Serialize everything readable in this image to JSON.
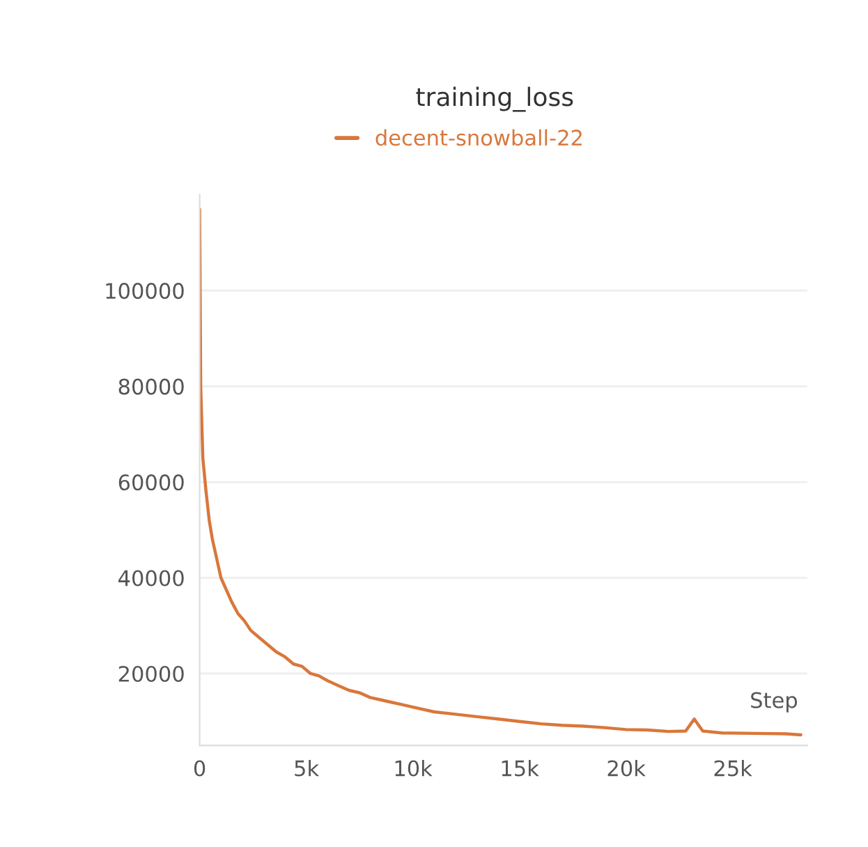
{
  "chart_data": {
    "type": "line",
    "title": "training_loss",
    "xlabel": "Step",
    "series": [
      {
        "name": "decent-snowball-22",
        "color": "#d9773a",
        "x": [
          0,
          50,
          150,
          300,
          450,
          600,
          800,
          1000,
          1200,
          1500,
          1800,
          2100,
          2400,
          2800,
          3200,
          3600,
          4000,
          4400,
          4800,
          5200,
          5600,
          6000,
          6500,
          7000,
          7500,
          8000,
          8500,
          9000,
          9500,
          10000,
          11000,
          12000,
          13000,
          14000,
          15000,
          16000,
          17000,
          18000,
          19000,
          20000,
          21000,
          22000,
          22800,
          23200,
          23600,
          24500,
          26000,
          27500,
          28200
        ],
        "values": [
          117000,
          80000,
          65000,
          58000,
          52000,
          48000,
          44000,
          40000,
          38000,
          35000,
          32500,
          31000,
          29000,
          27500,
          26000,
          24500,
          23500,
          22000,
          21500,
          20000,
          19500,
          18500,
          17500,
          16500,
          16000,
          15000,
          14500,
          14000,
          13500,
          13000,
          12000,
          11500,
          11000,
          10500,
          10000,
          9500,
          9200,
          9000,
          8700,
          8300,
          8200,
          7900,
          8000,
          10500,
          8000,
          7600,
          7500,
          7400,
          7200
        ]
      }
    ],
    "xlim": [
      0,
      28500
    ],
    "ylim": [
      5000,
      120000
    ],
    "xticks": [
      {
        "value": 0,
        "label": "0"
      },
      {
        "value": 5000,
        "label": "5k"
      },
      {
        "value": 10000,
        "label": "10k"
      },
      {
        "value": 15000,
        "label": "15k"
      },
      {
        "value": 20000,
        "label": "20k"
      },
      {
        "value": 25000,
        "label": "25k"
      }
    ],
    "yticks": [
      20000,
      40000,
      60000,
      80000,
      100000
    ],
    "grid": "y",
    "legend": "top",
    "line_style": "solid",
    "marker": "none"
  }
}
